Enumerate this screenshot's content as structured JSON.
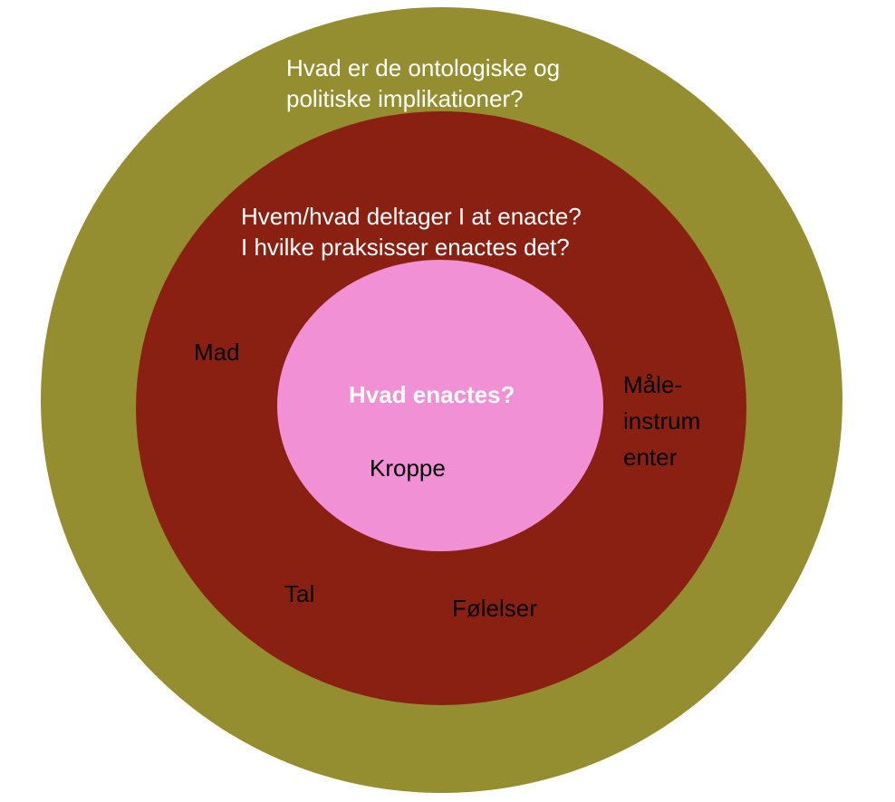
{
  "colors": {
    "outer_ring": "#958E31",
    "middle_ring": "#8A2012",
    "inner_circle": "#F190D5",
    "question_text": "#FFFFFF",
    "item_text": "#000000"
  },
  "outer_ring": {
    "question_lines": [
      "Hvad er de ontologiske og",
      "politiske implikationer?"
    ]
  },
  "middle_ring": {
    "question_lines": [
      "Hvem/hvad deltager I at enacte?",
      "I hvilke praksisser enactes det?"
    ],
    "items": {
      "mad": "Mad",
      "maaleinstrumenter_lines": [
        "Måle-",
        "instrum",
        "enter"
      ],
      "tal": "Tal",
      "folelser": "Følelser"
    }
  },
  "inner_circle": {
    "question": "Hvad enactes?",
    "item": "Kroppe"
  }
}
